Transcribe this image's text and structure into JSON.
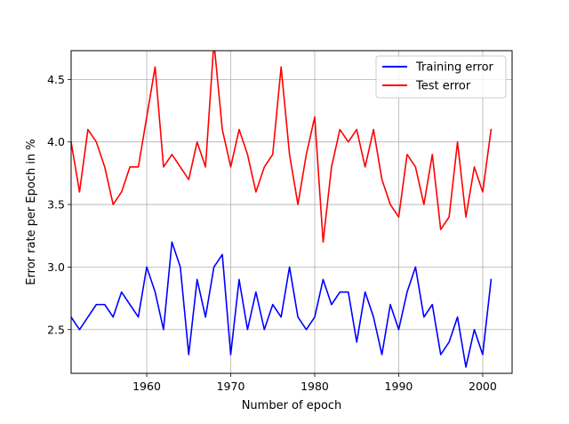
{
  "chart_data": {
    "type": "line",
    "title": "",
    "xlabel": "Number of epoch",
    "ylabel": "Error rate per Epoch in %",
    "xlim": [
      1951,
      2003.5
    ],
    "ylim": [
      2.15,
      4.73
    ],
    "xticks": [
      1960,
      1970,
      1980,
      1990,
      2000
    ],
    "yticks": [
      2.5,
      3.0,
      3.5,
      4.0,
      4.5
    ],
    "xtick_labels": [
      "1960",
      "1970",
      "1980",
      "1990",
      "2000"
    ],
    "ytick_labels": [
      "2.5",
      "3.0",
      "3.5",
      "4.0",
      "4.5"
    ],
    "grid": true,
    "legend_position": "top-right",
    "x": [
      1951,
      1952,
      1953,
      1954,
      1955,
      1956,
      1957,
      1958,
      1959,
      1960,
      1961,
      1962,
      1963,
      1964,
      1965,
      1966,
      1967,
      1968,
      1969,
      1970,
      1971,
      1972,
      1973,
      1974,
      1975,
      1976,
      1977,
      1978,
      1979,
      1980,
      1981,
      1982,
      1983,
      1984,
      1985,
      1986,
      1987,
      1988,
      1989,
      1990,
      1991,
      1992,
      1993,
      1994,
      1995,
      1996,
      1997,
      1998,
      1999,
      2000,
      2001
    ],
    "series": [
      {
        "name": "Training error",
        "color": "#0000ff",
        "values": [
          2.6,
          2.5,
          2.6,
          2.7,
          2.7,
          2.6,
          2.8,
          2.7,
          2.6,
          3.0,
          2.8,
          2.5,
          3.2,
          3.0,
          2.3,
          2.9,
          2.6,
          3.0,
          3.1,
          2.3,
          2.9,
          2.5,
          2.8,
          2.5,
          2.7,
          2.6,
          3.0,
          2.6,
          2.5,
          2.6,
          2.9,
          2.7,
          2.8,
          2.8,
          2.4,
          2.8,
          2.6,
          2.3,
          2.7,
          2.5,
          2.8,
          3.0,
          2.6,
          2.7,
          2.3,
          2.4,
          2.6,
          2.2,
          2.5,
          2.3,
          2.9
        ]
      },
      {
        "name": "Test error",
        "color": "#ff0000",
        "values": [
          4.0,
          3.6,
          4.1,
          4.0,
          3.8,
          3.5,
          3.6,
          3.8,
          3.8,
          4.2,
          4.6,
          3.8,
          3.9,
          3.8,
          3.7,
          4.0,
          3.8,
          4.8,
          4.1,
          3.8,
          4.1,
          3.9,
          3.6,
          3.8,
          3.9,
          4.6,
          3.9,
          3.5,
          3.9,
          4.2,
          3.2,
          3.8,
          4.1,
          4.0,
          4.1,
          3.8,
          4.1,
          3.7,
          3.5,
          3.4,
          3.9,
          3.8,
          3.5,
          3.9,
          3.3,
          3.4,
          4.0,
          3.4,
          3.8,
          3.6,
          4.1
        ]
      }
    ]
  }
}
